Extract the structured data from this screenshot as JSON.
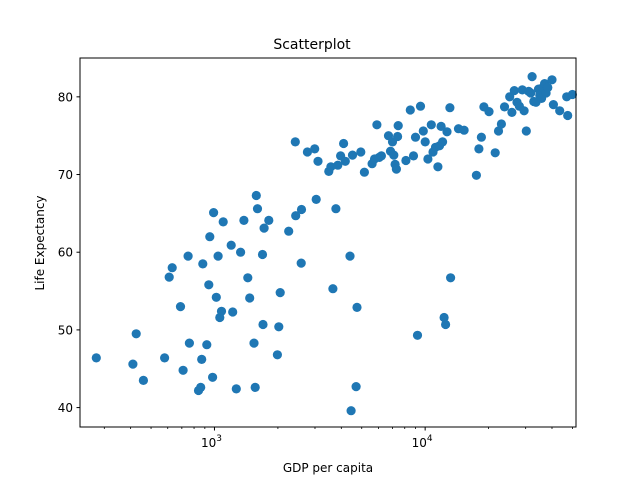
{
  "chart_data": {
    "type": "scatter",
    "title": "Scatterplot",
    "xlabel": "GDP per capita",
    "ylabel": "Life Expectancy",
    "xscale": "log",
    "xlim": [
      230,
      52000
    ],
    "ylim": [
      37.5,
      85
    ],
    "grid": false,
    "color": "#1f77b4",
    "xticks": [
      {
        "value": 1000,
        "base": "10",
        "exp": "3"
      },
      {
        "value": 10000,
        "base": "10",
        "exp": "4"
      }
    ],
    "yticks": [
      40,
      50,
      60,
      70,
      80
    ],
    "points": [
      {
        "x": 275,
        "y": 46.4
      },
      {
        "x": 410,
        "y": 45.6
      },
      {
        "x": 425,
        "y": 49.5
      },
      {
        "x": 460,
        "y": 43.5
      },
      {
        "x": 580,
        "y": 46.4
      },
      {
        "x": 610,
        "y": 56.8
      },
      {
        "x": 630,
        "y": 58.0
      },
      {
        "x": 690,
        "y": 53.0
      },
      {
        "x": 710,
        "y": 44.8
      },
      {
        "x": 750,
        "y": 59.5
      },
      {
        "x": 760,
        "y": 48.3
      },
      {
        "x": 840,
        "y": 42.2
      },
      {
        "x": 860,
        "y": 42.6
      },
      {
        "x": 870,
        "y": 46.2
      },
      {
        "x": 880,
        "y": 58.5
      },
      {
        "x": 920,
        "y": 48.1
      },
      {
        "x": 940,
        "y": 55.8
      },
      {
        "x": 950,
        "y": 62.0
      },
      {
        "x": 980,
        "y": 43.9
      },
      {
        "x": 990,
        "y": 65.1
      },
      {
        "x": 1020,
        "y": 54.2
      },
      {
        "x": 1040,
        "y": 59.5
      },
      {
        "x": 1060,
        "y": 51.6
      },
      {
        "x": 1080,
        "y": 52.4
      },
      {
        "x": 1100,
        "y": 63.9
      },
      {
        "x": 1200,
        "y": 60.9
      },
      {
        "x": 1220,
        "y": 52.3
      },
      {
        "x": 1270,
        "y": 42.4
      },
      {
        "x": 1330,
        "y": 60.0
      },
      {
        "x": 1380,
        "y": 64.1
      },
      {
        "x": 1440,
        "y": 56.7
      },
      {
        "x": 1470,
        "y": 54.1
      },
      {
        "x": 1540,
        "y": 48.3
      },
      {
        "x": 1560,
        "y": 42.6
      },
      {
        "x": 1580,
        "y": 67.3
      },
      {
        "x": 1600,
        "y": 65.6
      },
      {
        "x": 1690,
        "y": 59.7
      },
      {
        "x": 1700,
        "y": 50.7
      },
      {
        "x": 1720,
        "y": 63.1
      },
      {
        "x": 1810,
        "y": 64.1
      },
      {
        "x": 1990,
        "y": 46.8
      },
      {
        "x": 2020,
        "y": 50.4
      },
      {
        "x": 2050,
        "y": 54.8
      },
      {
        "x": 2250,
        "y": 62.7
      },
      {
        "x": 2420,
        "y": 74.2
      },
      {
        "x": 2430,
        "y": 64.7
      },
      {
        "x": 2580,
        "y": 58.6
      },
      {
        "x": 2590,
        "y": 65.5
      },
      {
        "x": 2760,
        "y": 72.9
      },
      {
        "x": 2990,
        "y": 73.3
      },
      {
        "x": 3040,
        "y": 66.8
      },
      {
        "x": 3100,
        "y": 71.7
      },
      {
        "x": 3490,
        "y": 70.4
      },
      {
        "x": 3570,
        "y": 71.0
      },
      {
        "x": 3650,
        "y": 55.3
      },
      {
        "x": 3770,
        "y": 65.6
      },
      {
        "x": 3850,
        "y": 71.2
      },
      {
        "x": 3970,
        "y": 72.4
      },
      {
        "x": 4100,
        "y": 74.0
      },
      {
        "x": 4180,
        "y": 71.7
      },
      {
        "x": 4400,
        "y": 59.5
      },
      {
        "x": 4450,
        "y": 39.6
      },
      {
        "x": 4520,
        "y": 72.5
      },
      {
        "x": 4700,
        "y": 42.7
      },
      {
        "x": 4750,
        "y": 52.9
      },
      {
        "x": 4950,
        "y": 72.9
      },
      {
        "x": 5150,
        "y": 70.3
      },
      {
        "x": 5600,
        "y": 71.4
      },
      {
        "x": 5750,
        "y": 72.0
      },
      {
        "x": 5900,
        "y": 76.4
      },
      {
        "x": 6050,
        "y": 72.2
      },
      {
        "x": 6200,
        "y": 72.4
      },
      {
        "x": 6700,
        "y": 75.0
      },
      {
        "x": 6850,
        "y": 73.0
      },
      {
        "x": 7000,
        "y": 74.2
      },
      {
        "x": 7100,
        "y": 72.5
      },
      {
        "x": 7200,
        "y": 71.3
      },
      {
        "x": 7300,
        "y": 70.7
      },
      {
        "x": 7400,
        "y": 74.9
      },
      {
        "x": 7450,
        "y": 76.3
      },
      {
        "x": 8100,
        "y": 71.8
      },
      {
        "x": 8500,
        "y": 78.3
      },
      {
        "x": 8800,
        "y": 72.4
      },
      {
        "x": 9000,
        "y": 74.8
      },
      {
        "x": 9200,
        "y": 49.3
      },
      {
        "x": 9500,
        "y": 78.8
      },
      {
        "x": 9800,
        "y": 75.6
      },
      {
        "x": 10000,
        "y": 74.2
      },
      {
        "x": 10300,
        "y": 72.0
      },
      {
        "x": 10700,
        "y": 76.4
      },
      {
        "x": 10900,
        "y": 72.9
      },
      {
        "x": 11200,
        "y": 73.5
      },
      {
        "x": 11500,
        "y": 71.0
      },
      {
        "x": 11700,
        "y": 73.7
      },
      {
        "x": 11900,
        "y": 76.2
      },
      {
        "x": 12100,
        "y": 74.2
      },
      {
        "x": 12300,
        "y": 51.6
      },
      {
        "x": 12500,
        "y": 50.7
      },
      {
        "x": 12700,
        "y": 75.5
      },
      {
        "x": 13100,
        "y": 78.6
      },
      {
        "x": 13200,
        "y": 56.7
      },
      {
        "x": 14400,
        "y": 75.9
      },
      {
        "x": 15300,
        "y": 75.7
      },
      {
        "x": 17500,
        "y": 69.9
      },
      {
        "x": 18000,
        "y": 73.3
      },
      {
        "x": 18500,
        "y": 74.8
      },
      {
        "x": 19000,
        "y": 78.7
      },
      {
        "x": 20100,
        "y": 78.1
      },
      {
        "x": 21500,
        "y": 72.8
      },
      {
        "x": 22300,
        "y": 75.6
      },
      {
        "x": 23000,
        "y": 76.5
      },
      {
        "x": 23800,
        "y": 78.7
      },
      {
        "x": 25200,
        "y": 80.0
      },
      {
        "x": 25800,
        "y": 78.0
      },
      {
        "x": 26500,
        "y": 80.8
      },
      {
        "x": 27300,
        "y": 79.3
      },
      {
        "x": 28000,
        "y": 78.8
      },
      {
        "x": 28900,
        "y": 80.9
      },
      {
        "x": 29500,
        "y": 78.2
      },
      {
        "x": 30200,
        "y": 75.6
      },
      {
        "x": 31000,
        "y": 80.7
      },
      {
        "x": 31700,
        "y": 80.5
      },
      {
        "x": 32200,
        "y": 82.6
      },
      {
        "x": 32800,
        "y": 79.4
      },
      {
        "x": 33600,
        "y": 79.3
      },
      {
        "x": 34500,
        "y": 81.0
      },
      {
        "x": 35000,
        "y": 80.2
      },
      {
        "x": 35700,
        "y": 79.8
      },
      {
        "x": 36200,
        "y": 81.2
      },
      {
        "x": 36900,
        "y": 81.7
      },
      {
        "x": 37500,
        "y": 80.5
      },
      {
        "x": 38200,
        "y": 81.2
      },
      {
        "x": 40000,
        "y": 82.2
      },
      {
        "x": 40600,
        "y": 79.0
      },
      {
        "x": 43500,
        "y": 78.2
      },
      {
        "x": 47000,
        "y": 80.0
      },
      {
        "x": 47500,
        "y": 77.6
      },
      {
        "x": 50000,
        "y": 80.3
      }
    ]
  }
}
